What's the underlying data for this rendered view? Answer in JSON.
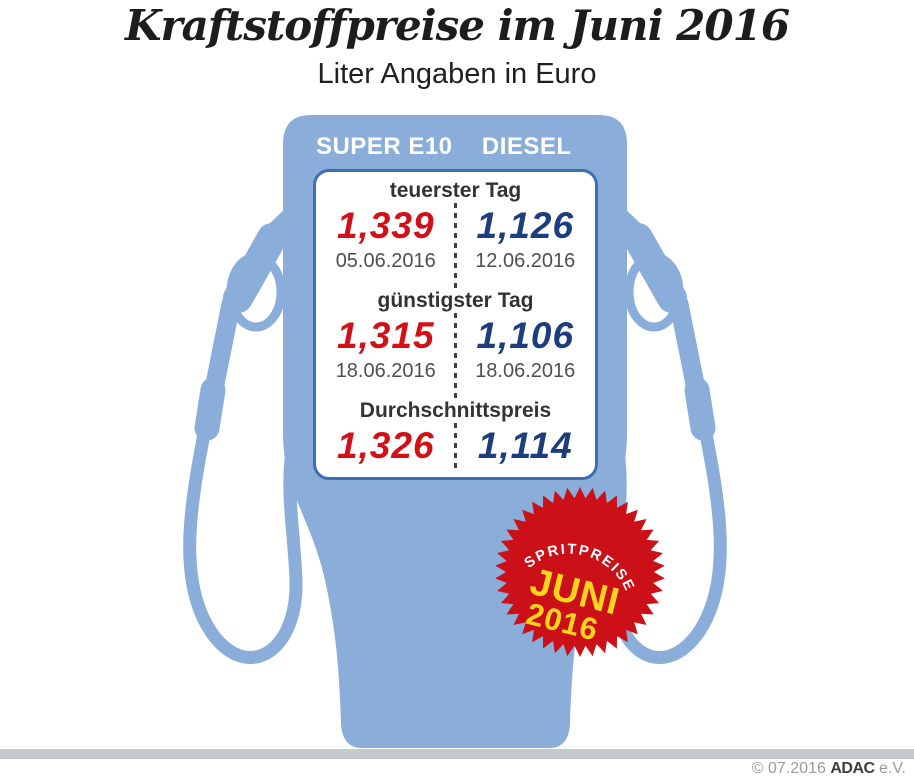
{
  "title": "Kraftstoffpreise im Juni 2016",
  "subtitle": "Liter Angaben in Euro",
  "table": {
    "header": [
      "SUPER E10",
      "DIESEL"
    ],
    "sections": [
      {
        "label": "teuerster Tag",
        "cells": [
          {
            "price": "1,339",
            "date": "05.06.2016"
          },
          {
            "price": "1,126",
            "date": "12.06.2016"
          }
        ]
      },
      {
        "label": "günstigster Tag",
        "cells": [
          {
            "price": "1,315",
            "date": "18.06.2016"
          },
          {
            "price": "1,106",
            "date": "18.06.2016"
          }
        ]
      },
      {
        "label": "Durchschnittspreis",
        "cells": [
          {
            "price": "1,326"
          },
          {
            "price": "1,114"
          }
        ]
      }
    ]
  },
  "badge": {
    "arc_text": "SPRITPREISE",
    "month": "JUNI",
    "year": "2016"
  },
  "footer": {
    "copyright": "© 07.2016",
    "brand": "ADAC",
    "org_suffix": "e.V."
  },
  "icons": {
    "pump": "fuel-pump-illustration",
    "nozzle": "fuel-nozzle-icon",
    "badge": "starburst-badge"
  },
  "colors": {
    "pump-blue": "#8aaed9",
    "panel-border": "#3e6fae",
    "super-red": "#d11117",
    "diesel-blue": "#1d3d7c",
    "label-dark": "#333333",
    "date-gray": "#4f4f4f",
    "dot-gray": "#3f3f3f",
    "badge-red": "#cc1018",
    "badge-yellow": "#ffd41c",
    "bar-gray": "#c6c9cb",
    "copy-gray": "#9b9b9b",
    "title-black": "#1d1d1b"
  },
  "chart_data": {
    "type": "table",
    "title": "Kraftstoffpreise im Juni 2016",
    "subtitle": "Liter Angaben in Euro",
    "unit": "EUR pro Liter",
    "columns": [
      "SUPER E10",
      "DIESEL"
    ],
    "rows": [
      {
        "label": "teuerster Tag",
        "SUPER E10": 1.339,
        "SUPER E10 Datum": "05.06.2016",
        "DIESEL": 1.126,
        "DIESEL Datum": "12.06.2016"
      },
      {
        "label": "günstigster Tag",
        "SUPER E10": 1.315,
        "SUPER E10 Datum": "18.06.2016",
        "DIESEL": 1.106,
        "DIESEL Datum": "18.06.2016"
      },
      {
        "label": "Durchschnittspreis",
        "SUPER E10": 1.326,
        "DIESEL": 1.114
      }
    ],
    "source_badge": "SPRITPREISE JUNI 2016",
    "source": "© 07.2016 ADAC e.V."
  }
}
